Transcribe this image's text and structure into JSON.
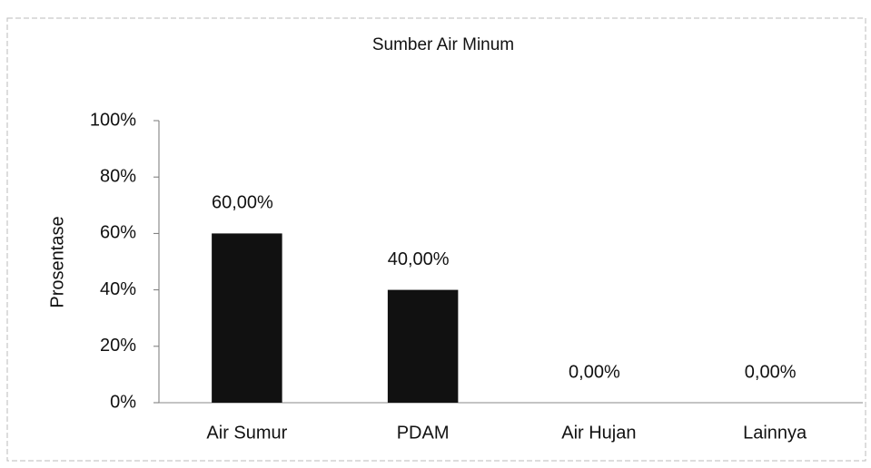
{
  "chart_data": {
    "type": "bar",
    "title": "Sumber Air Minum",
    "y_label": "Prosentase",
    "categories": [
      "Air Sumur",
      "PDAM",
      "Air Hujan",
      "Lainnya"
    ],
    "values": [
      60,
      40,
      0,
      0
    ],
    "value_labels": [
      "60,00%",
      "40,00%",
      "0,00%",
      "0,00%"
    ],
    "color": "#111111",
    "ylim": [
      0,
      100
    ],
    "yticks": [
      {
        "value": 0,
        "label": "0%"
      },
      {
        "value": 20,
        "label": "20%"
      },
      {
        "value": 40,
        "label": "40%"
      },
      {
        "value": 60,
        "label": "60%"
      },
      {
        "value": 80,
        "label": "80%"
      },
      {
        "value": 100,
        "label": "100%"
      }
    ],
    "grid": false
  }
}
